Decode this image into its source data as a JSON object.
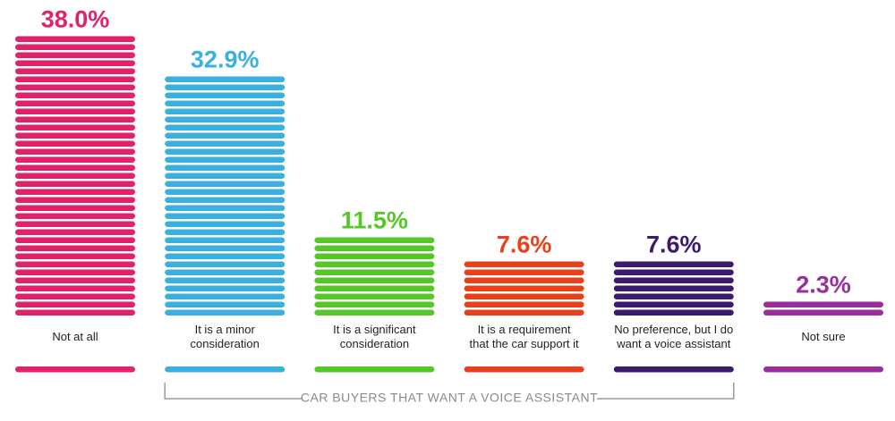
{
  "chart_data": {
    "type": "bar",
    "categories": [
      "Not at all",
      "It is a minor consideration",
      "It is a significant consideration",
      "It is a requirement that the car support it",
      "No preference, but I do want a voice assistant",
      "Not sure"
    ],
    "values": [
      38.0,
      32.9,
      11.5,
      7.6,
      7.6,
      2.3
    ],
    "value_labels": [
      "38.0%",
      "32.9%",
      "11.5%",
      "7.6%",
      "7.6%",
      "2.3%"
    ],
    "category_label_lines": [
      [
        "Not at all"
      ],
      [
        "It is a minor",
        "consideration"
      ],
      [
        "It is a significant",
        "consideration"
      ],
      [
        "It is a requirement",
        "that the car support it"
      ],
      [
        "No preference, but I do",
        "want a voice assistant"
      ],
      [
        "Not sure"
      ]
    ],
    "colors": [
      "#e0226b",
      "#3ab0e0",
      "#55c828",
      "#e8401a",
      "#3c1a6e",
      "#9b2e9e"
    ],
    "group_bracket": {
      "label": "CAR BUYERS THAT WANT A VOICE ASSISTANT",
      "from_category": 1,
      "to_category": 4
    },
    "ylim": [
      0,
      38.0
    ],
    "grid": false,
    "title": "",
    "xlabel": "",
    "ylabel": ""
  }
}
